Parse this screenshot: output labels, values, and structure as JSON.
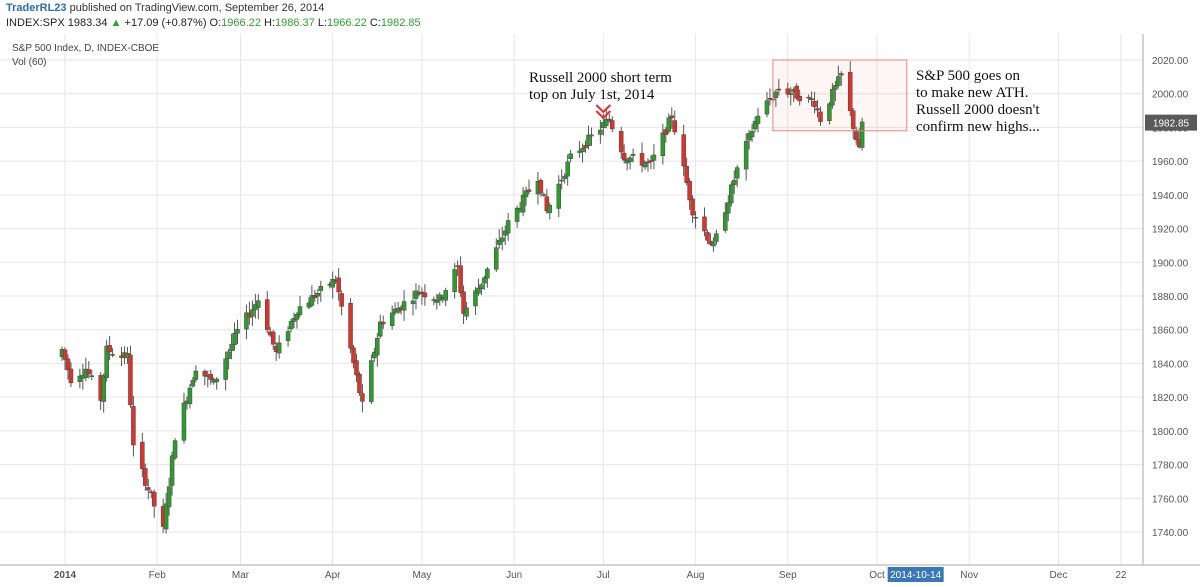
{
  "header": {
    "user": "TraderRL23",
    "published": "published on TradingView.com, September 26, 2014",
    "symbol": "INDEX:SPX",
    "price": "1983.34",
    "arrow": "▲",
    "change": "+17.09 (+0.87%)",
    "o_label": "O:",
    "o": "1966.22",
    "h_label": "H:",
    "h": "1986.37",
    "l_label": "L:",
    "l": "1966.22",
    "c_label": "C:",
    "c": "1982.85"
  },
  "chart_data": {
    "type": "candlestick",
    "title": "S&P 500 Index, D, INDEX-CBOE",
    "volume_label": "Vol (60)",
    "ylim": [
      1727,
      2030
    ],
    "y_ticks": [
      1740,
      1760,
      1780,
      1800,
      1820,
      1840,
      1860,
      1880,
      1900,
      1920,
      1940,
      1960,
      1980,
      2000,
      2020
    ],
    "x_ticks": [
      "2014",
      "Feb",
      "Mar",
      "Apr",
      "May",
      "Jun",
      "Jul",
      "Aug",
      "Sep",
      "Oct",
      "Nov",
      "Dec",
      "22"
    ],
    "current_price_label": "1982.85",
    "crosshair_date_label": "2014-10-14",
    "grid": true,
    "colors": {
      "up": "#2e9b2e",
      "down": "#d9342b",
      "wick": "#555555",
      "grid": "#e6e6e6",
      "axis_text": "#555555",
      "price_tag": "#5a5a5a",
      "date_tag": "#3a78b5",
      "annotation": "#e03030"
    },
    "anchors": [
      [
        "2013-12-31",
        1848
      ],
      [
        "2014-01-03",
        1831
      ],
      [
        "2014-01-08",
        1837
      ],
      [
        "2014-01-13",
        1819
      ],
      [
        "2014-01-15",
        1848
      ],
      [
        "2014-01-22",
        1844
      ],
      [
        "2014-01-24",
        1790
      ],
      [
        "2014-02-03",
        1741
      ],
      [
        "2014-02-07",
        1797
      ],
      [
        "2014-02-14",
        1838
      ],
      [
        "2014-02-20",
        1828
      ],
      [
        "2014-02-28",
        1859
      ],
      [
        "2014-03-07",
        1878
      ],
      [
        "2014-03-13",
        1846
      ],
      [
        "2014-03-20",
        1872
      ],
      [
        "2014-04-02",
        1890
      ],
      [
        "2014-04-11",
        1815
      ],
      [
        "2014-04-17",
        1864
      ],
      [
        "2014-04-30",
        1883
      ],
      [
        "2014-05-07",
        1878
      ],
      [
        "2014-05-13",
        1897
      ],
      [
        "2014-05-15",
        1870
      ],
      [
        "2014-05-21",
        1888
      ],
      [
        "2014-05-30",
        1923
      ],
      [
        "2014-06-09",
        1951
      ],
      [
        "2014-06-12",
        1930
      ],
      [
        "2014-06-20",
        1962
      ],
      [
        "2014-07-03",
        1985
      ],
      [
        "2014-07-08",
        1963
      ],
      [
        "2014-07-17",
        1958
      ],
      [
        "2014-07-24",
        1987
      ],
      [
        "2014-07-31",
        1931
      ],
      [
        "2014-08-07",
        1909
      ],
      [
        "2014-08-15",
        1955
      ],
      [
        "2014-08-22",
        1988
      ],
      [
        "2014-08-29",
        2003
      ],
      [
        "2014-09-03",
        2000
      ],
      [
        "2014-09-10",
        1995
      ],
      [
        "2014-09-12",
        1985
      ],
      [
        "2014-09-19",
        2011
      ],
      [
        "2014-09-25",
        1966
      ],
      [
        "2014-09-26",
        1983
      ]
    ]
  },
  "annotations": {
    "note1_line1": "Russell 2000 short term",
    "note1_line2": "top on July 1st, 2014",
    "note2_line1": "S&P 500 goes on",
    "note2_line2": "to make new ATH.",
    "note2_line3": "Russell 2000 doesn't",
    "note2_line4": "confirm new highs...",
    "highlight_box": {
      "from_date": "2014-08-27",
      "to_date": "2014-10-11",
      "price_low": 1978,
      "price_high": 2020
    }
  }
}
